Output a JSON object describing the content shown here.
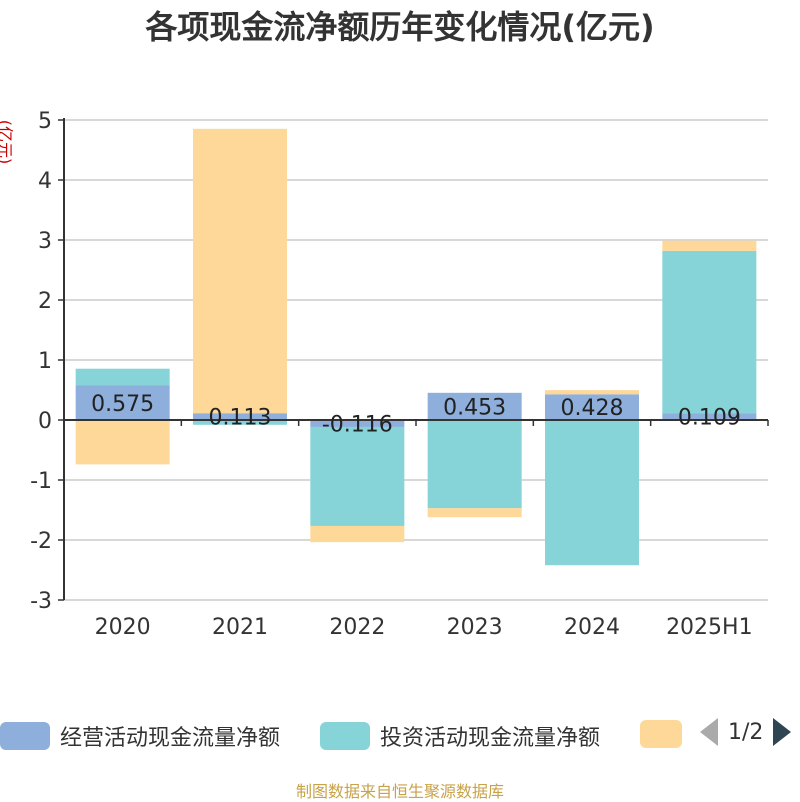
{
  "title": "各项现金流净额历年变化情况(亿元)",
  "unit_label": "(亿元)",
  "source": "制图数据来自恒生聚源数据库",
  "legend": {
    "items": [
      {
        "label": "经营活动现金流量净额",
        "color": "#8eaedb"
      },
      {
        "label": "投资活动现金流量净额",
        "color": "#86d4d8"
      },
      {
        "label": "",
        "color": "#fdd899"
      }
    ],
    "page": "1/2"
  },
  "chart_data": {
    "type": "bar",
    "stacked": true,
    "categories": [
      "2020",
      "2021",
      "2022",
      "2023",
      "2024",
      "2025H1"
    ],
    "ylim": [
      -3,
      5
    ],
    "yticks": [
      "5",
      "4",
      "3",
      "2",
      "1",
      "0",
      "-1",
      "-2",
      "-3"
    ],
    "grid": true,
    "legend_position": "bottom",
    "series": [
      {
        "name": "经营活动现金流量净额",
        "color": "#8eaedb",
        "values": [
          0.575,
          0.113,
          -0.116,
          0.453,
          0.428,
          0.109
        ],
        "labels": [
          "0.575",
          "0.113",
          "-0.116",
          "0.453",
          "0.428",
          "0.109"
        ]
      },
      {
        "name": "投资活动现金流量净额",
        "color": "#86d4d8",
        "values": [
          0.28,
          -0.08,
          -1.65,
          -1.47,
          -2.42,
          2.71
        ]
      },
      {
        "color": "#fdd899",
        "values": [
          -0.74,
          4.74,
          -0.27,
          -0.15,
          0.07,
          0.17
        ]
      }
    ]
  }
}
